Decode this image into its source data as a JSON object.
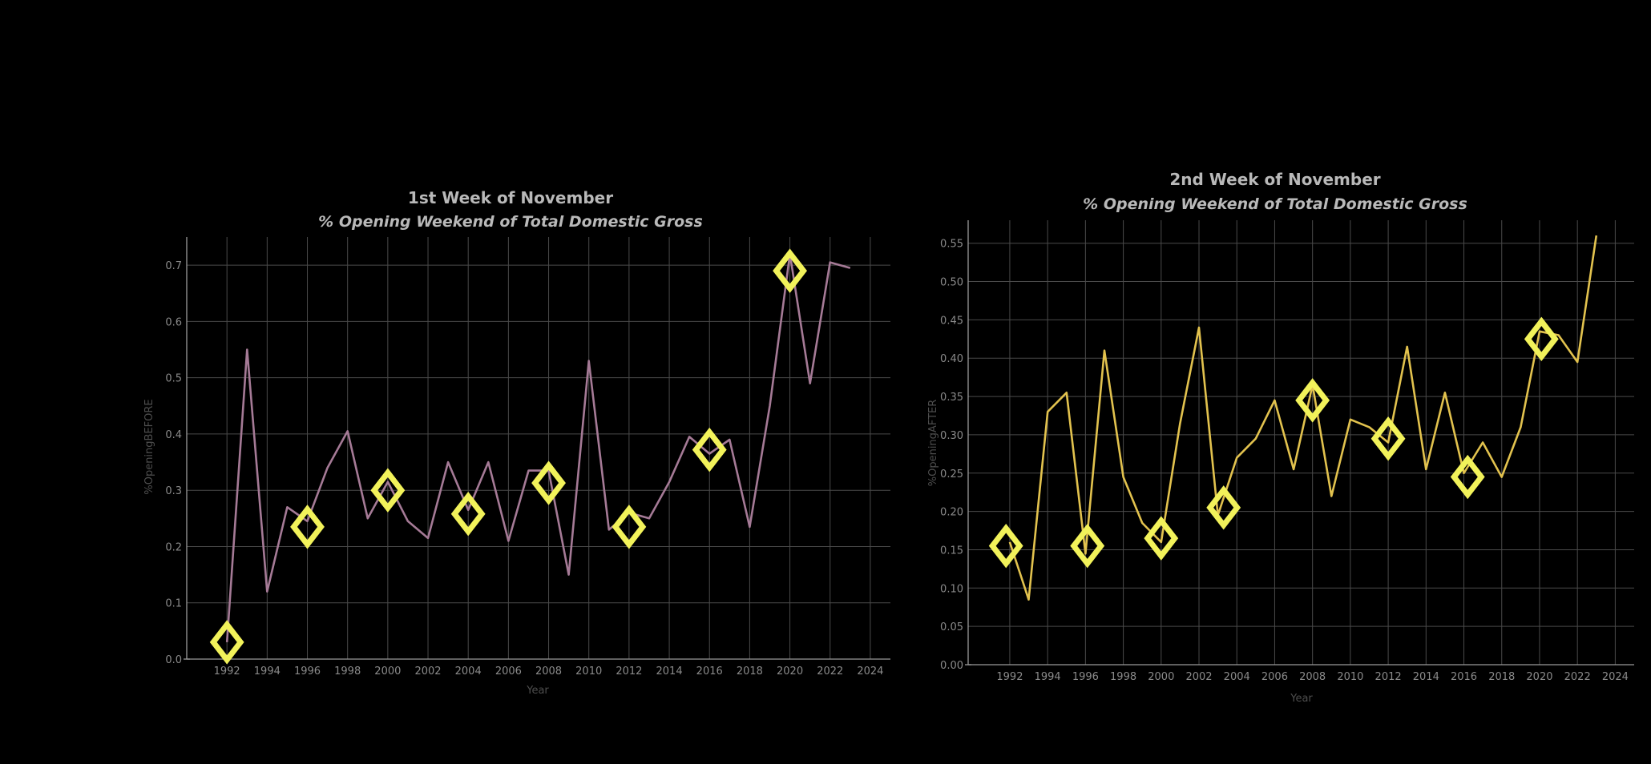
{
  "chart_data": [
    {
      "type": "line",
      "title": "1st Week of November",
      "subtitle": "% Opening Weekend of Total Domestic Gross",
      "xlabel": "Year",
      "ylabel": "%OpeningBEFORE",
      "xlim": [
        1990,
        2025
      ],
      "ylim": [
        0,
        0.75
      ],
      "xticks": [
        1992,
        1994,
        1996,
        1998,
        2000,
        2002,
        2004,
        2006,
        2008,
        2010,
        2012,
        2014,
        2016,
        2018,
        2020,
        2022,
        2024
      ],
      "yticks": [
        0.0,
        0.1,
        0.2,
        0.3,
        0.4,
        0.5,
        0.6,
        0.7
      ],
      "tick_format": "1",
      "grid": true,
      "line_color": "#a57a96",
      "marker_color": "#f2f25a",
      "series": [
        {
          "x": [
            1992,
            1993,
            1994,
            1995,
            1996,
            1997,
            1998,
            1999,
            2000,
            2001,
            2002,
            2003,
            2004,
            2005,
            2006,
            2007,
            2008,
            2009,
            2010,
            2011,
            2012,
            2013,
            2014,
            2015,
            2016,
            2017,
            2018,
            2019,
            2020,
            2021,
            2022,
            2023
          ],
          "y": [
            0.03,
            0.55,
            0.12,
            0.27,
            0.245,
            0.34,
            0.405,
            0.25,
            0.315,
            0.245,
            0.215,
            0.35,
            0.265,
            0.35,
            0.21,
            0.335,
            0.335,
            0.15,
            0.53,
            0.23,
            0.26,
            0.25,
            0.315,
            0.395,
            0.365,
            0.39,
            0.235,
            0.45,
            0.72,
            0.49,
            0.705,
            0.695
          ]
        }
      ],
      "markers": {
        "x": [
          1992,
          1996,
          2000,
          2004,
          2008,
          2012,
          2016,
          2020
        ],
        "y": [
          0.03,
          0.235,
          0.3,
          0.258,
          0.313,
          0.235,
          0.372,
          0.69
        ]
      }
    },
    {
      "type": "line",
      "title": "2nd Week of November",
      "subtitle": "% Opening Weekend of Total Domestic Gross",
      "xlabel": "Year",
      "ylabel": "%OpeningAFTER",
      "xlim": [
        1989.8,
        2025
      ],
      "ylim": [
        0,
        0.58
      ],
      "xticks": [
        1992,
        1994,
        1996,
        1998,
        2000,
        2002,
        2004,
        2006,
        2008,
        2010,
        2012,
        2014,
        2016,
        2018,
        2020,
        2022,
        2024
      ],
      "yticks": [
        0.0,
        0.05,
        0.1,
        0.15,
        0.2,
        0.25,
        0.3,
        0.35,
        0.4,
        0.45,
        0.5,
        0.55
      ],
      "tick_format": "2",
      "grid": true,
      "line_color": "#e2c24e",
      "marker_color": "#f2f25a",
      "series": [
        {
          "x": [
            1992,
            1993,
            1994,
            1995,
            1996,
            1997,
            1998,
            1999,
            2000,
            2001,
            2002,
            2003,
            2004,
            2005,
            2006,
            2007,
            2008,
            2009,
            2010,
            2011,
            2012,
            2013,
            2014,
            2015,
            2016,
            2017,
            2018,
            2019,
            2020,
            2021,
            2022,
            2023
          ],
          "y": [
            0.16,
            0.085,
            0.33,
            0.355,
            0.145,
            0.41,
            0.245,
            0.185,
            0.16,
            0.315,
            0.44,
            0.195,
            0.27,
            0.295,
            0.345,
            0.255,
            0.365,
            0.22,
            0.32,
            0.31,
            0.29,
            0.415,
            0.255,
            0.355,
            0.25,
            0.29,
            0.245,
            0.31,
            0.435,
            0.43,
            0.395,
            0.56
          ]
        }
      ],
      "markers": {
        "x": [
          1991.8,
          1996.1,
          2000,
          2003.3,
          2008,
          2012,
          2016.2,
          2020.1
        ],
        "y": [
          0.155,
          0.155,
          0.165,
          0.205,
          0.345,
          0.295,
          0.245,
          0.425
        ]
      }
    }
  ]
}
